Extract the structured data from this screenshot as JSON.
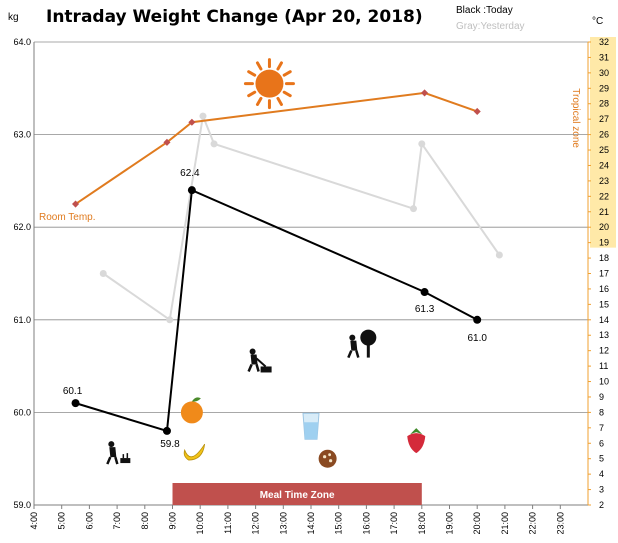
{
  "chart_data": {
    "type": "line",
    "title": "Intraday Weight Change (Apr 20, 2018)",
    "ylabel": "kg",
    "ylim": [
      59.0,
      64.0
    ],
    "y_ticks": [
      "59.0",
      "60.0",
      "61.0",
      "62.0",
      "63.0",
      "64.0"
    ],
    "right_axis": {
      "label": "°C",
      "ylim": [
        2,
        32
      ],
      "ticks": [
        2,
        3,
        4,
        5,
        6,
        7,
        8,
        9,
        10,
        11,
        12,
        13,
        14,
        15,
        16,
        17,
        18,
        19,
        20,
        21,
        22,
        23,
        24,
        25,
        26,
        27,
        28,
        29,
        30,
        31,
        32
      ],
      "highlight_range": [
        19,
        32
      ],
      "highlight_color": "#ffe9a8",
      "highlight_label": "Tropical zone"
    },
    "x_ticks": [
      "4:00",
      "5:00",
      "6:00",
      "7:00",
      "8:00",
      "9:00",
      "10:00",
      "11:00",
      "12:00",
      "13:00",
      "14:00",
      "15:00",
      "16:00",
      "17:00",
      "18:00",
      "19:00",
      "20:00",
      "21:00",
      "22:00",
      "23:00"
    ],
    "legend": {
      "today": "Black :Today",
      "yesterday": "Gray:Yesterday"
    },
    "series": [
      {
        "name": "Today",
        "color": "#000000",
        "x": [
          5.5,
          8.8,
          9.7,
          18.1,
          20.0
        ],
        "y": [
          60.1,
          59.8,
          62.4,
          61.3,
          61.0
        ],
        "labels": [
          "60.1",
          "59.8",
          "62.4",
          "61.3",
          "61.0"
        ]
      },
      {
        "name": "Yesterday",
        "color": "#d9d9d9",
        "x": [
          6.5,
          8.9,
          10.1,
          10.5,
          17.7,
          18.0,
          20.8
        ],
        "y": [
          61.5,
          61.0,
          63.2,
          62.9,
          62.2,
          62.9,
          61.7
        ]
      },
      {
        "name": "Room Temp.",
        "axis": "right",
        "color": "#e07b1f",
        "marker_color": "#c0504d",
        "x": [
          5.5,
          8.8,
          9.7,
          18.1,
          20.0
        ],
        "y": [
          21.5,
          25.5,
          26.8,
          28.7,
          27.5
        ]
      }
    ],
    "meal_time_zone": {
      "label": "Meal Time Zone",
      "x_range": [
        9.0,
        18.0
      ],
      "color": "#c0504d"
    },
    "grid": true,
    "icons": [
      {
        "name": "sun-icon",
        "time": 12.5,
        "value": 63.55
      },
      {
        "name": "gardening-person-icon",
        "time": 6.9,
        "value": 59.55
      },
      {
        "name": "orange-icon",
        "time": 9.7,
        "value": 60.0
      },
      {
        "name": "banana-icon",
        "time": 9.8,
        "value": 59.55
      },
      {
        "name": "mowing-person-icon",
        "time": 12.0,
        "value": 60.55
      },
      {
        "name": "tree-pruning-person-icon",
        "time": 15.6,
        "value": 60.7
      },
      {
        "name": "water-glass-icon",
        "time": 14.0,
        "value": 59.85
      },
      {
        "name": "cookie-icon",
        "time": 14.6,
        "value": 59.5
      },
      {
        "name": "strawberry-icon",
        "time": 17.8,
        "value": 59.7
      }
    ]
  }
}
